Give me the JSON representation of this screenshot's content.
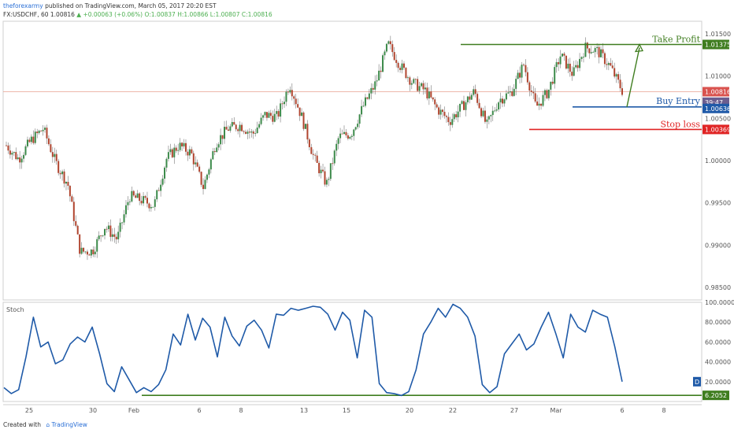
{
  "header": {
    "author": "theforexarmy",
    "published": "published on TradingView.com, March 05, 2017 20:20 EST",
    "symbol_line": "FX:USDCHF, 60  1.00816",
    "change": "+0.00063 (+0.06%)",
    "ohlc": "O:1.00837  H:1.00866  L:1.00807  C:1.00816"
  },
  "footer": {
    "created_with": "Created with",
    "brand": "TradingView"
  },
  "chart_data": [
    {
      "type": "candlestick",
      "ylim": [
        0.9835,
        1.0165
      ],
      "y_ticks": [
        "1.01500",
        "1.01000",
        "1.00500",
        "1.00000",
        "0.99500",
        "0.99000",
        "0.98500"
      ],
      "x_ticks": [
        "25",
        "30",
        "Feb",
        "6",
        "8",
        "13",
        "15",
        "20",
        "22",
        "27",
        "Mar",
        "6",
        "8"
      ],
      "close_path": [
        1.0018,
        1.0002,
        1.0024,
        1.0038,
        0.9998,
        0.9972,
        0.9892,
        0.9893,
        0.9922,
        0.9907,
        0.9958,
        0.9953,
        0.9947,
        1.0002,
        1.0018,
        1.0009,
        0.9968,
        1.0021,
        1.0038,
        1.0042,
        1.0031,
        1.0054,
        1.0052,
        1.0091,
        1.0051,
        1.0002,
        0.9972,
        1.0028,
        1.0032,
        1.0065,
        1.0092,
        1.0138,
        1.0112,
        1.0092,
        1.0083,
        1.0061,
        1.0047,
        1.0064,
        1.0082,
        1.0041,
        1.0072,
        1.0081,
        1.0114,
        1.0063,
        1.0082,
        1.0125,
        1.0102,
        1.0134,
        1.013,
        1.0112,
        1.0083
      ],
      "last_price": "1.00816",
      "countdown": "39:47",
      "annotations": {
        "take_profit": {
          "label": "Take Profit",
          "price": "1.01375",
          "color": "#3f7d1f"
        },
        "buy_entry": {
          "label": "Buy Entry",
          "price": "1.00636",
          "color": "#1f5aa8"
        },
        "stop_loss": {
          "label": "Stop loss",
          "price": "1.00369",
          "color": "#e02424"
        }
      }
    },
    {
      "type": "line",
      "title": "Stoch",
      "ylim": [
        0,
        100
      ],
      "y_ticks": [
        "100.0000",
        "80.0000",
        "60.0000",
        "40.0000",
        "20.0000"
      ],
      "values": [
        14,
        8,
        12,
        45,
        85,
        55,
        60,
        38,
        42,
        58,
        65,
        60,
        75,
        48,
        18,
        10,
        35,
        22,
        9,
        14,
        10,
        17,
        32,
        68,
        57,
        88,
        62,
        84,
        75,
        45,
        85,
        66,
        56,
        76,
        82,
        72,
        54,
        88,
        87,
        94,
        92,
        94,
        96,
        95,
        88,
        72,
        90,
        82,
        44,
        92,
        85,
        18,
        9,
        8,
        6,
        10,
        32,
        68,
        80,
        94,
        85,
        98,
        94,
        85,
        66,
        17,
        9,
        15,
        48,
        58,
        68,
        52,
        58,
        75,
        90,
        68,
        44,
        88,
        75,
        70,
        92,
        88,
        85,
        55,
        20
      ],
      "level": {
        "value": 6.2052,
        "label": "6.2052",
        "color": "#3f7d1f"
      },
      "line_color": "#1f5aa8",
      "badge": "D"
    }
  ]
}
